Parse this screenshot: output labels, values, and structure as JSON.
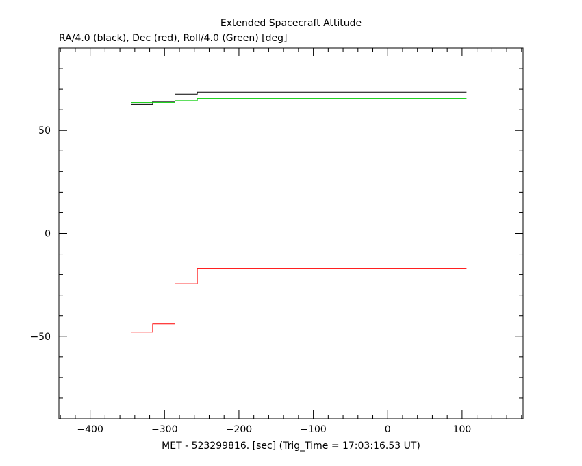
{
  "chart_data": {
    "type": "line",
    "title": "Extended Spacecraft Attitude",
    "subtitle": "RA/4.0 (black), Dec (red), Roll/4.0 (Green) [deg]",
    "xlabel": "MET - 523299816. [sec] (Trig_Time = 17:03:16.53 UT)",
    "ylabel": "",
    "xlim": [
      -442,
      182
    ],
    "ylim": [
      -90,
      90
    ],
    "x_ticks": [
      -400,
      -300,
      -200,
      -100,
      0,
      100
    ],
    "x_tick_labels": [
      "−400",
      "−300",
      "−200",
      "−100",
      "0",
      "100"
    ],
    "y_ticks": [
      -50,
      0,
      50
    ],
    "y_tick_labels": [
      "−50",
      "0",
      "50"
    ],
    "x_minor_step": 20,
    "y_minor_step": 10,
    "grid": false,
    "legend": "none",
    "series": [
      {
        "color": "#000000",
        "step": true,
        "x": [
          -345,
          -316,
          -316,
          -286,
          -286,
          -256,
          -256,
          106
        ],
        "y": [
          62.6,
          62.6,
          64.0,
          64.0,
          67.6,
          67.6,
          68.6,
          68.6
        ]
      },
      {
        "color": "#ff0000",
        "step": true,
        "x": [
          -345,
          -316,
          -316,
          -286,
          -286,
          -256,
          -256,
          106
        ],
        "y": [
          -48.0,
          -48.0,
          -44.0,
          -44.0,
          -24.5,
          -24.5,
          -17.0,
          -17.0
        ]
      },
      {
        "color": "#00cc00",
        "step": true,
        "x": [
          -345,
          -286,
          -286,
          -256,
          -256,
          106
        ],
        "y": [
          63.5,
          63.5,
          64.4,
          64.4,
          65.5,
          65.5
        ]
      }
    ]
  }
}
